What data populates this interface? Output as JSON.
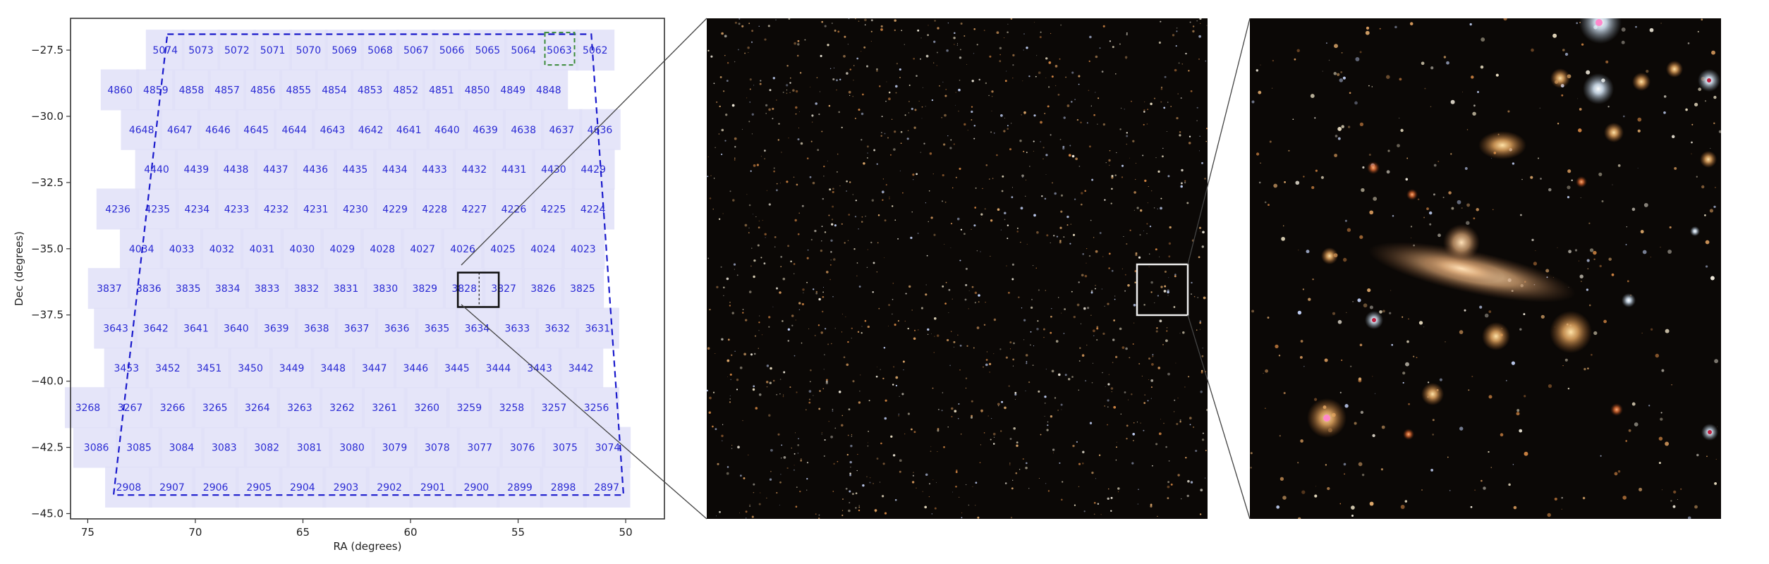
{
  "chart_data": {
    "type": "scatter",
    "title": "",
    "xlabel": "RA (degrees)",
    "ylabel": "Dec (degrees)",
    "xlim": [
      75.8,
      48.2
    ],
    "ylim": [
      -45.2,
      -26.3
    ],
    "x_ticks": [
      75,
      70,
      65,
      60,
      55,
      50
    ],
    "x_tick_labels": [
      "75",
      "70",
      "65",
      "60",
      "55",
      "50"
    ],
    "y_ticks": [
      -27.5,
      -30.0,
      -32.5,
      -35.0,
      -37.5,
      -40.0,
      -42.5,
      -45.0
    ],
    "y_tick_labels": [
      "−27.5",
      "−30.0",
      "−32.5",
      "−35.0",
      "−37.5",
      "−40.0",
      "−42.5",
      "−45.0"
    ],
    "grid": false,
    "rows": [
      {
        "dec": -27.5,
        "ra_start": 71.4,
        "ra_step": -1.665,
        "tiles": [
          "5074",
          "5073",
          "5072",
          "5071",
          "5070",
          "5069",
          "5068",
          "5067",
          "5066",
          "5065",
          "5064",
          "5063",
          "5062"
        ]
      },
      {
        "dec": -29.0,
        "ra_start": 73.5,
        "ra_step": -1.66,
        "tiles": [
          "4860",
          "4859",
          "4858",
          "4857",
          "4856",
          "4855",
          "4854",
          "4853",
          "4852",
          "4851",
          "4850",
          "4849",
          "4848"
        ]
      },
      {
        "dec": -30.5,
        "ra_start": 72.5,
        "ra_step": -1.775,
        "tiles": [
          "4648",
          "4647",
          "4646",
          "4645",
          "4644",
          "4643",
          "4642",
          "4641",
          "4640",
          "4639",
          "4638",
          "4637",
          "4636"
        ]
      },
      {
        "dec": -32.0,
        "ra_start": 71.8,
        "ra_step": -1.845,
        "tiles": [
          "4440",
          "4439",
          "4438",
          "4437",
          "4436",
          "4435",
          "4434",
          "4433",
          "4432",
          "4431",
          "4430",
          "4429"
        ]
      },
      {
        "dec": -33.5,
        "ra_start": 73.6,
        "ra_step": -1.84,
        "tiles": [
          "4236",
          "4235",
          "4234",
          "4233",
          "4232",
          "4231",
          "4230",
          "4229",
          "4228",
          "4227",
          "4226",
          "4225",
          "4224"
        ]
      },
      {
        "dec": -35.0,
        "ra_start": 72.5,
        "ra_step": -1.866,
        "tiles": [
          "4034",
          "4033",
          "4032",
          "4031",
          "4030",
          "4029",
          "4028",
          "4027",
          "4026",
          "4025",
          "4024",
          "4023"
        ]
      },
      {
        "dec": -36.5,
        "ra_start": 74.0,
        "ra_step": -1.833,
        "tiles": [
          "3837",
          "3836",
          "3835",
          "3834",
          "3833",
          "3832",
          "3831",
          "3830",
          "3829",
          "3828",
          "3827",
          "3826",
          "3825"
        ]
      },
      {
        "dec": -38.0,
        "ra_start": 73.7,
        "ra_step": -1.866,
        "tiles": [
          "3643",
          "3642",
          "3641",
          "3640",
          "3639",
          "3638",
          "3637",
          "3636",
          "3635",
          "3634",
          "3633",
          "3632",
          "3631"
        ]
      },
      {
        "dec": -39.5,
        "ra_start": 73.2,
        "ra_step": -1.92,
        "tiles": [
          "3453",
          "3452",
          "3451",
          "3450",
          "3449",
          "3448",
          "3447",
          "3446",
          "3445",
          "3444",
          "3443",
          "3442"
        ]
      },
      {
        "dec": -41.0,
        "ra_start": 75.0,
        "ra_step": -1.97,
        "tiles": [
          "3268",
          "3267",
          "3266",
          "3265",
          "3264",
          "3263",
          "3262",
          "3261",
          "3260",
          "3259",
          "3258",
          "3257",
          "3256"
        ]
      },
      {
        "dec": -42.5,
        "ra_start": 74.6,
        "ra_step": -1.98,
        "tiles": [
          "3086",
          "3085",
          "3084",
          "3083",
          "3082",
          "3081",
          "3080",
          "3079",
          "3078",
          "3077",
          "3076",
          "3075",
          "3074"
        ]
      },
      {
        "dec": -44.0,
        "ra_start": 73.1,
        "ra_step": -2.02,
        "tiles": [
          "2908",
          "2907",
          "2906",
          "2905",
          "2904",
          "2903",
          "2902",
          "2901",
          "2900",
          "2899",
          "2898",
          "2897"
        ]
      }
    ],
    "survey_boundary_ra_dec": [
      [
        71.3,
        -26.9
      ],
      [
        51.6,
        -26.9
      ],
      [
        50.1,
        -44.3
      ],
      [
        73.8,
        -44.3
      ]
    ],
    "highlighted_tile": {
      "id": "5063",
      "ra": 53.1,
      "dec": -27.5
    },
    "zoom_box_ra_dec": {
      "ra_min": 55.9,
      "ra_max": 57.8,
      "dec_min": -37.2,
      "dec_max": -35.9
    },
    "colors": {
      "tile_fill": "#e0e0f8",
      "tile_label": "#2b2bd4",
      "boundary": "#1a1acc",
      "highlight": "#3a8a3a",
      "zoom_box": "#111111",
      "sky_background": "#0b0806",
      "connector_line": "#444444",
      "inset_box": "#eeeeee"
    }
  }
}
